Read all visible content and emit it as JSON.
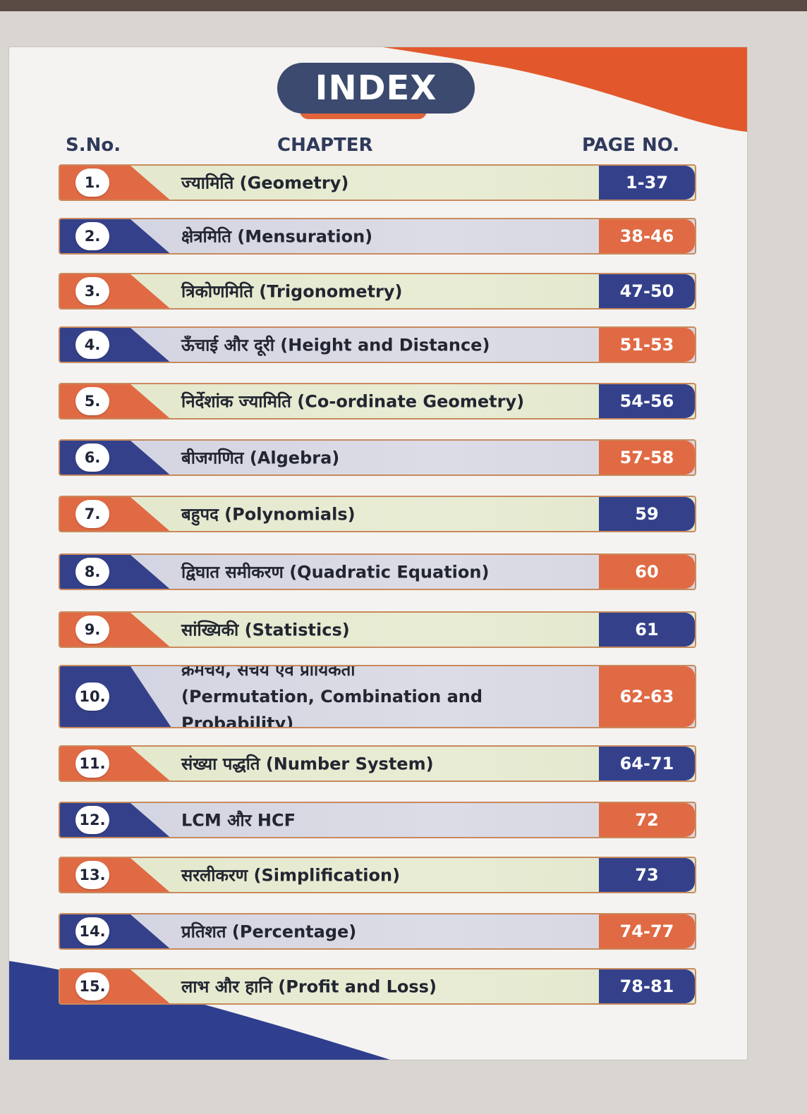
{
  "header": {
    "title": "INDEX",
    "col_sno": "S.No.",
    "col_chapter": "CHAPTER",
    "col_page": "PAGE NO."
  },
  "colors": {
    "navy": "#34418a",
    "orange": "#e06a44",
    "pill": "#3b4a6e"
  },
  "rows": [
    {
      "sno": "1.",
      "chapter": "ज्यामिति (Geometry)",
      "page": "1-37"
    },
    {
      "sno": "2.",
      "chapter": "क्षेत्रमिति (Mensuration)",
      "page": "38-46"
    },
    {
      "sno": "3.",
      "chapter": "त्रिकोणमिति (Trigonometry)",
      "page": "47-50"
    },
    {
      "sno": "4.",
      "chapter": "ऊँचाई और दूरी (Height and Distance)",
      "page": "51-53"
    },
    {
      "sno": "5.",
      "chapter": "निर्देशांक ज्यामिति (Co-ordinate Geometry)",
      "page": "54-56"
    },
    {
      "sno": "6.",
      "chapter": "बीजगणित (Algebra)",
      "page": "57-58"
    },
    {
      "sno": "7.",
      "chapter": "बहुपद (Polynomials)",
      "page": "59"
    },
    {
      "sno": "8.",
      "chapter": "द्विघात समीकरण (Quadratic Equation)",
      "page": "60"
    },
    {
      "sno": "9.",
      "chapter": "सांख्यिकी (Statistics)",
      "page": "61"
    },
    {
      "sno": "10.",
      "chapter": "क्रमचय, संचय एवं प्रायिकता",
      "chapter_line2": "(Permutation, Combination and Probability)",
      "page": "62-63"
    },
    {
      "sno": "11.",
      "chapter": "संख्या पद्धति (Number System)",
      "page": "64-71"
    },
    {
      "sno": "12.",
      "chapter": "LCM और HCF",
      "page": "72"
    },
    {
      "sno": "13.",
      "chapter": "सरलीकरण (Simplification)",
      "page": "73"
    },
    {
      "sno": "14.",
      "chapter": "प्रतिशत (Percentage)",
      "page": "74-77"
    },
    {
      "sno": "15.",
      "chapter": "लाभ और हानि (Profit and Loss)",
      "page": "78-81"
    }
  ]
}
